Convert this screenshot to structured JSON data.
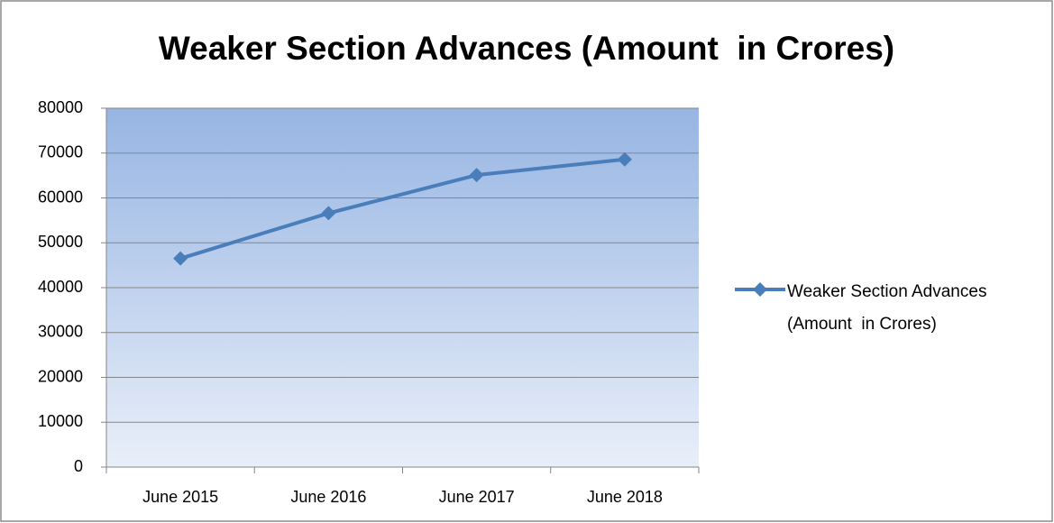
{
  "chart_data": {
    "type": "line",
    "title": "Weaker Section Advances (Amount  in Crores)",
    "categories": [
      "June 2015",
      "June 2016",
      "June 2017",
      "June 2018"
    ],
    "series": [
      {
        "name": "Weaker Section Advances (Amount  in Crores)",
        "color": "#4a7ebb",
        "values": [
          46500,
          56600,
          65100,
          68600
        ]
      }
    ],
    "ylim": [
      0,
      80000
    ],
    "yticks": [
      0,
      10000,
      20000,
      30000,
      40000,
      50000,
      60000,
      70000,
      80000
    ],
    "grid": true,
    "legend": "right"
  }
}
